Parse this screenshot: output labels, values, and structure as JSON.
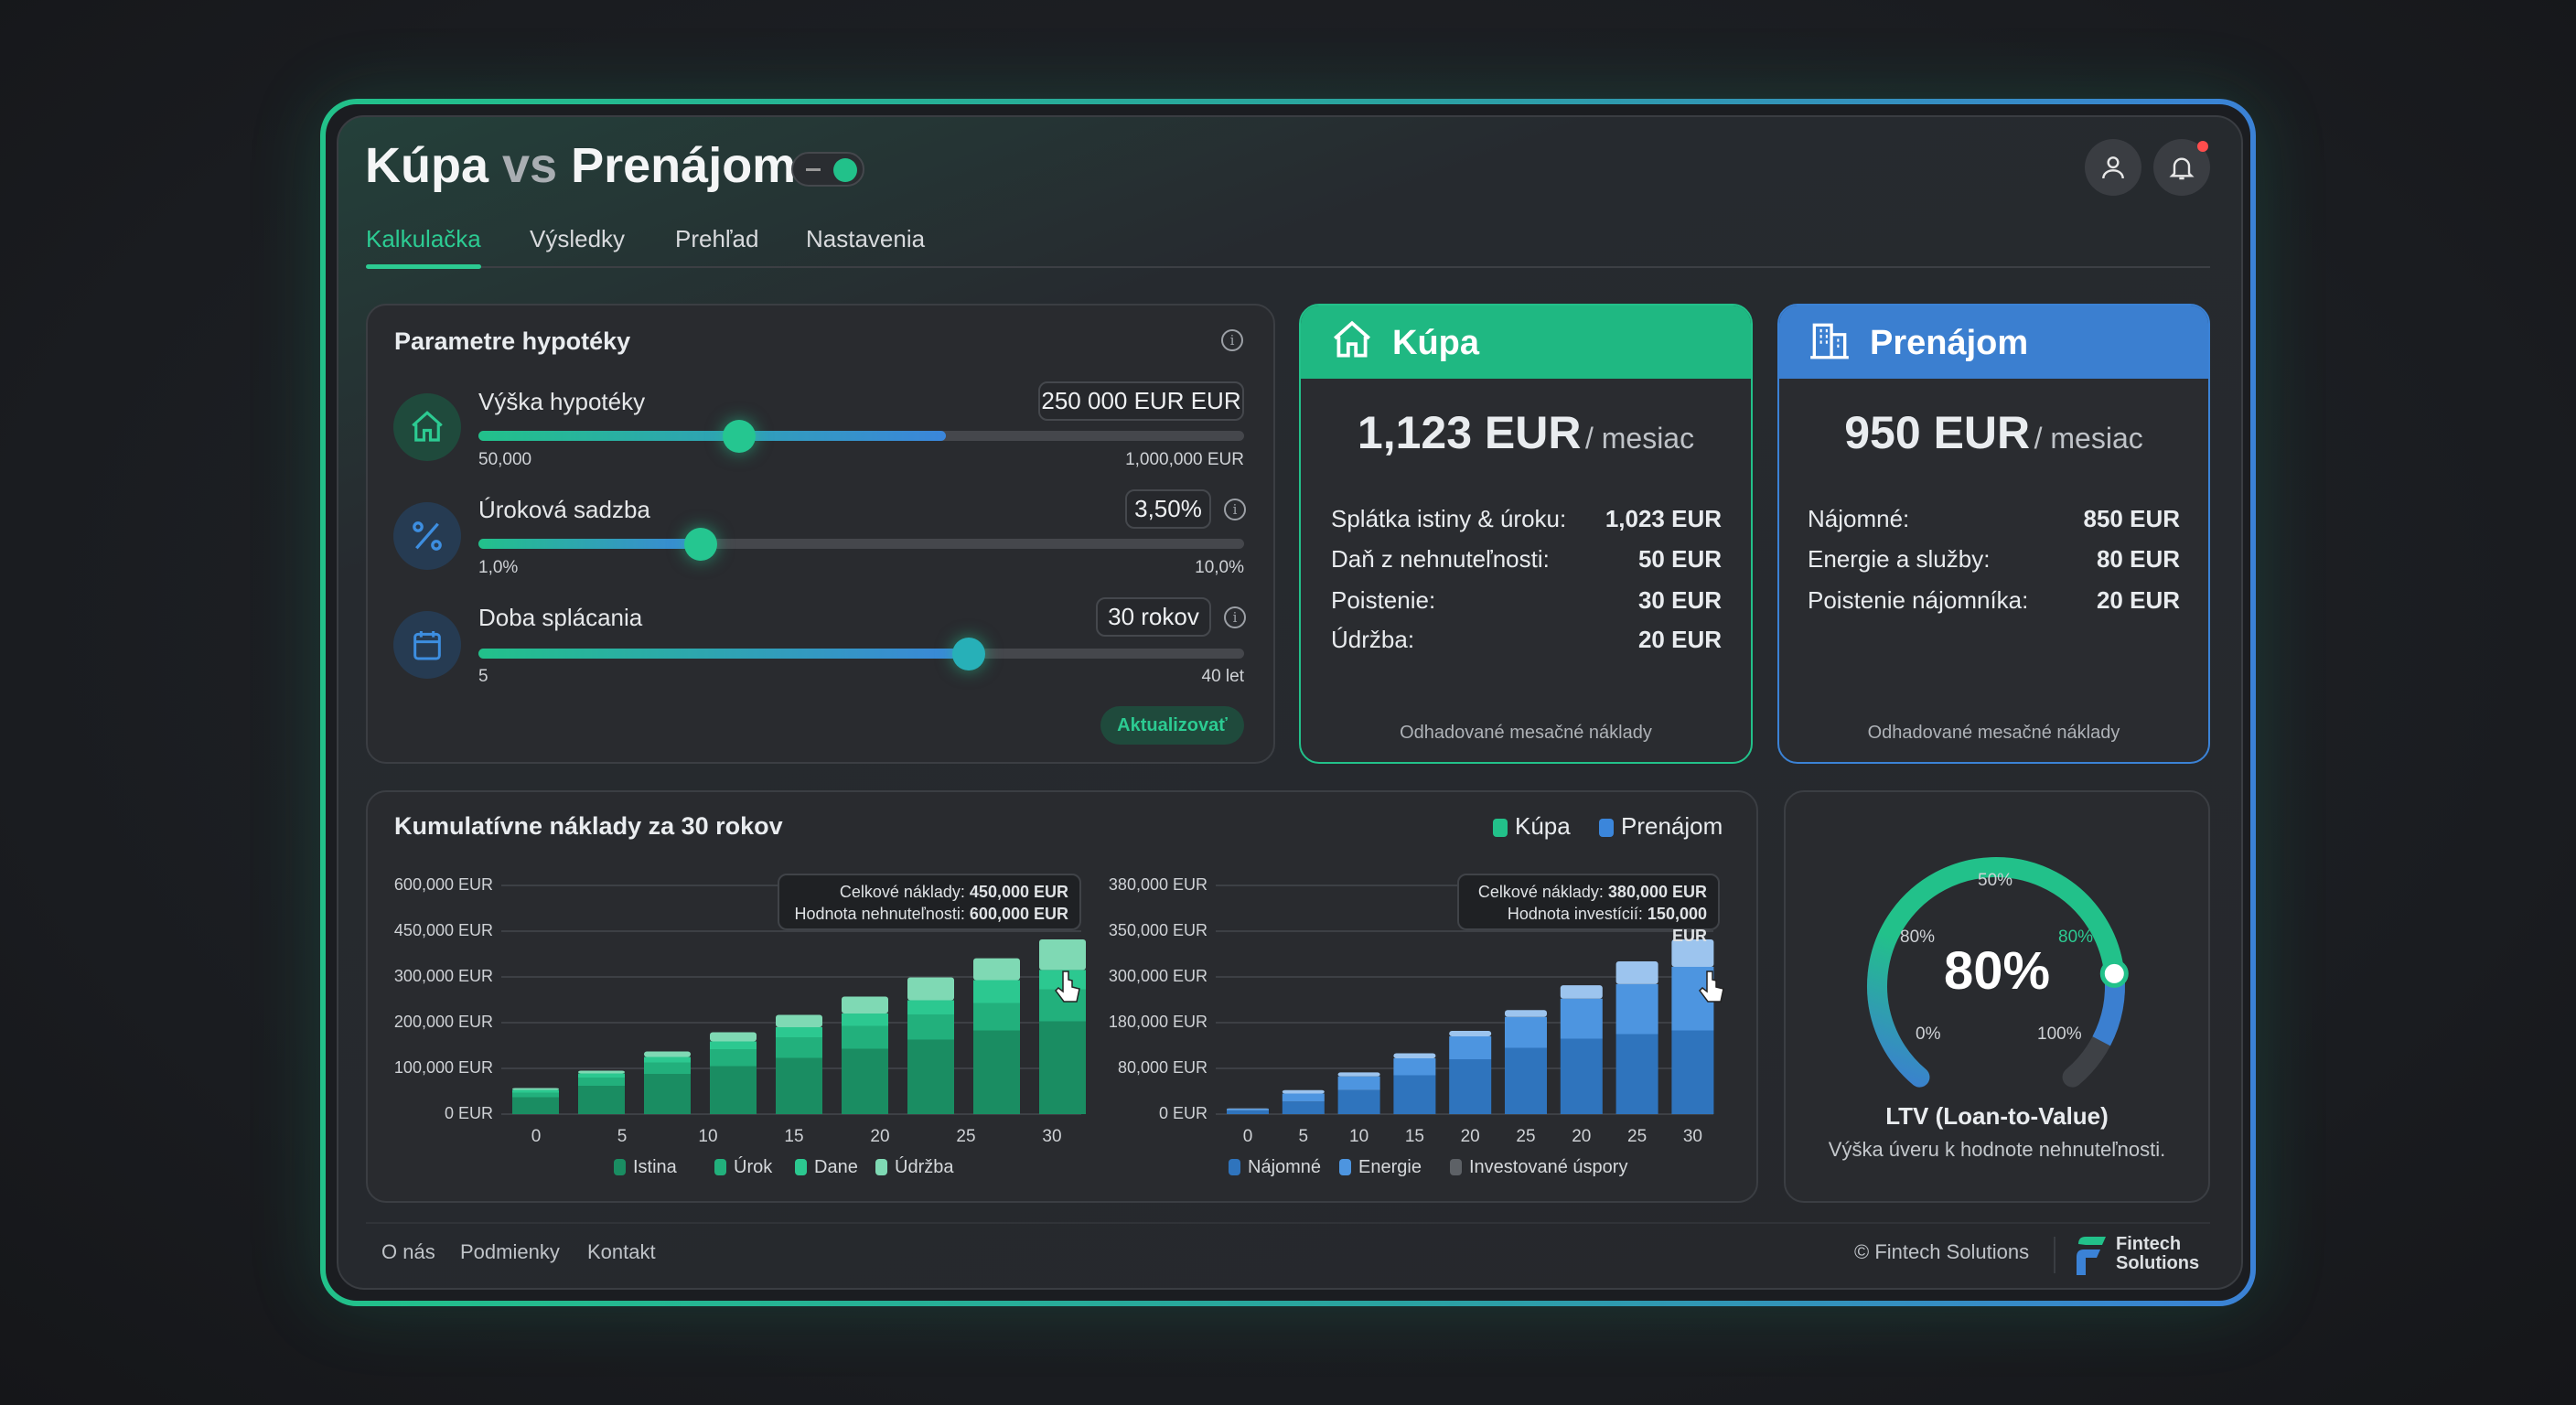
{
  "header": {
    "title_a": "Kúpa",
    "title_vs": "vs",
    "title_b": "Prenájom",
    "toggle_on": true
  },
  "tabs": [
    {
      "label": "Kalkulačka",
      "active": true
    },
    {
      "label": "Výsledky"
    },
    {
      "label": "Prehľad"
    },
    {
      "label": "Nastavenia"
    }
  ],
  "icons": {
    "user": "user-icon",
    "bell": "bell-icon",
    "notification_dot": "#ff4d4d"
  },
  "params": {
    "title": "Parametre hypotéky",
    "button": "Aktualizovať",
    "items": [
      {
        "label": "Výška hypotéky",
        "value": "250 000 EUR EUR",
        "min": "50,000",
        "max": "1,000,000 EUR",
        "position": 0.34,
        "fill": 0.61,
        "icon": "house-icon"
      },
      {
        "label": "Úroková sadzba",
        "value": "3,50%",
        "min": "1,0%",
        "max": "10,0%",
        "position": 0.29,
        "fill": 0.29,
        "icon": "percent-icon"
      },
      {
        "label": "Doba splácania",
        "value": "30 rokov",
        "min": "5",
        "max": "40 let",
        "position": 0.64,
        "fill": 0.64,
        "icon": "calendar-icon"
      }
    ]
  },
  "kupa": {
    "title": "Kúpa",
    "price": "1,123 EUR",
    "per": "/ mesiac",
    "note": "Odhadované mesačné náklady",
    "color": "#1fb882",
    "rows": [
      {
        "label": "Splátka istiny & úroku:",
        "value": "1,023 EUR"
      },
      {
        "label": "Daň z nehnuteľnosti:",
        "value": "50 EUR"
      },
      {
        "label": "Poistenie:",
        "value": "30 EUR"
      },
      {
        "label": "Údržba:",
        "value": "20 EUR"
      }
    ]
  },
  "prenajom": {
    "title": "Prenájom",
    "price": "950 EUR",
    "per": "/ mesiac",
    "note": "Odhadované mesačné náklady",
    "color": "#3b7fd0",
    "rows": [
      {
        "label": "Nájomné:",
        "value": "850 EUR"
      },
      {
        "label": "Energie a služby:",
        "value": "80 EUR"
      },
      {
        "label": "Poistenie nájomníka:",
        "value": "20 EUR"
      }
    ]
  },
  "chart_data": [
    {
      "type": "bar",
      "stacked": true,
      "title": "Kumulatívne náklady za 30 rokov",
      "legend_top": [
        "Kúpa",
        "Prenájom"
      ],
      "yticks": [
        0,
        100000,
        200000,
        300000,
        450000,
        600000
      ],
      "ytick_labels": [
        "0 EUR",
        "100,000 EUR",
        "200,000 EUR",
        "300,000 EUR",
        "450,000 EUR",
        "600,000 EUR"
      ],
      "xtick_labels": [
        "0",
        "5",
        "10",
        "15",
        "20",
        "25",
        "30"
      ],
      "series": [
        {
          "name": "Istina",
          "color": "#1a8d62",
          "values": [
            37000,
            62000,
            88000,
            105000,
            123000,
            143000,
            163000,
            183000,
            203000
          ]
        },
        {
          "name": "Úrok",
          "color": "#22b07c",
          "values": [
            10000,
            18000,
            25000,
            37000,
            45000,
            50000,
            55000,
            60000,
            70000
          ]
        },
        {
          "name": "Dane",
          "color": "#2cc890",
          "values": [
            6000,
            9000,
            12000,
            17000,
            22000,
            27000,
            31000,
            50000,
            50000
          ]
        },
        {
          "name": "Údržba",
          "color": "#7fd9b4",
          "values": [
            4000,
            6000,
            12000,
            20000,
            27000,
            37000,
            50000,
            68000,
            100000
          ]
        }
      ],
      "tooltip": {
        "l1": "Celkové náklady:",
        "v1": "450,000 EUR",
        "l2": "Hodnota nehnuteľnosti:",
        "v2": "600,000 EUR"
      }
    },
    {
      "type": "bar",
      "stacked": true,
      "yticks": [
        0,
        80000,
        180000,
        300000,
        350000,
        380000
      ],
      "ytick_labels": [
        "0 EUR",
        "80,000 EUR",
        "180,000 EUR",
        "300,000 EUR",
        "350,000 EUR",
        "380,000 EUR"
      ],
      "xtick_labels": [
        "0",
        "5",
        "10",
        "15",
        "20",
        "25",
        "20",
        "25",
        "30"
      ],
      "series": [
        {
          "name": "Nájomné",
          "color": "#2f74bd",
          "values": [
            6000,
            22000,
            42000,
            68000,
            100000,
            125000,
            145000,
            155000,
            163000
          ]
        },
        {
          "name": "Energie",
          "color": "#4d95e0",
          "values": [
            3000,
            14000,
            24000,
            34000,
            50000,
            70000,
            98000,
            126000,
            148000
          ]
        },
        {
          "name": "Investované úspory",
          "color": "#9cc4ee",
          "legend_color": "#5d6166",
          "values": [
            1000,
            6000,
            7000,
            11000,
            12000,
            18000,
            35000,
            36000,
            30000
          ]
        }
      ],
      "tooltip": {
        "l1": "Celkové náklady:",
        "v1": "380,000 EUR",
        "l2": "Hodnota investícií:",
        "v2": "150,000 EUR"
      }
    }
  ],
  "ltv": {
    "value": 80,
    "value_label": "80%",
    "title": "LTV (Loan-to-Value)",
    "subtitle": "Výška úveru k hodnote nehnuteľnosti.",
    "labels": {
      "p0": "0%",
      "p50": "50%",
      "p80_left": "80%",
      "p80_right": "80%",
      "p100": "100%"
    }
  },
  "footer": {
    "links": [
      "O nás",
      "Podmienky",
      "Kontakt"
    ],
    "copyright": "© Fintech Solutions",
    "logo_l1": "Fintech",
    "logo_l2": "Solutions"
  }
}
